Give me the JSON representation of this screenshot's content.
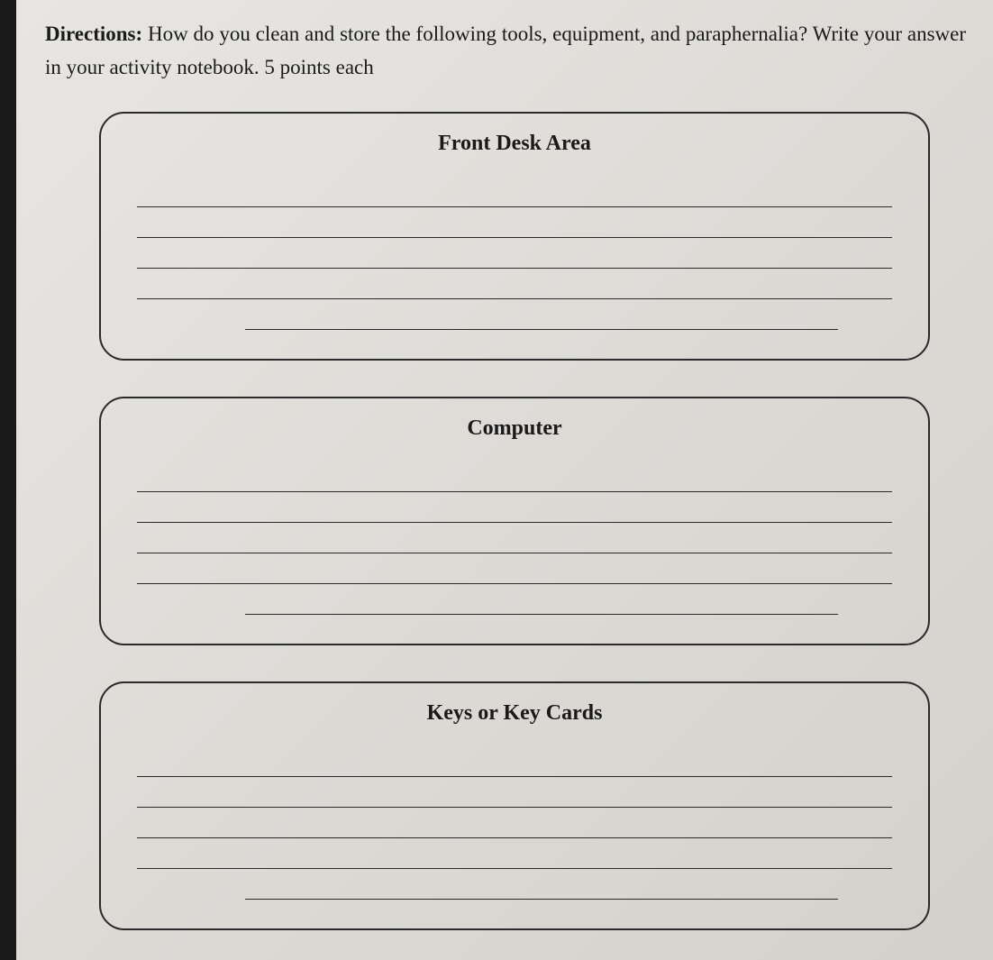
{
  "directions": {
    "label": "Directions:",
    "text": " How do you clean and store the following tools, equipment, and paraphernalia? Write your answer in your activity notebook. 5 points each"
  },
  "boxes": [
    {
      "title": "Front Desk Area",
      "lines": 5
    },
    {
      "title": "Computer",
      "lines": 5
    },
    {
      "title": "Keys or Key Cards",
      "lines": 5
    }
  ],
  "styling": {
    "background_color": "#e0ddd8",
    "border_color": "#2a2a2a",
    "text_color": "#1a1a1a",
    "border_radius": 28,
    "title_fontsize": 24,
    "directions_fontsize": 23,
    "line_height": 32,
    "font_family": "Georgia, serif"
  }
}
